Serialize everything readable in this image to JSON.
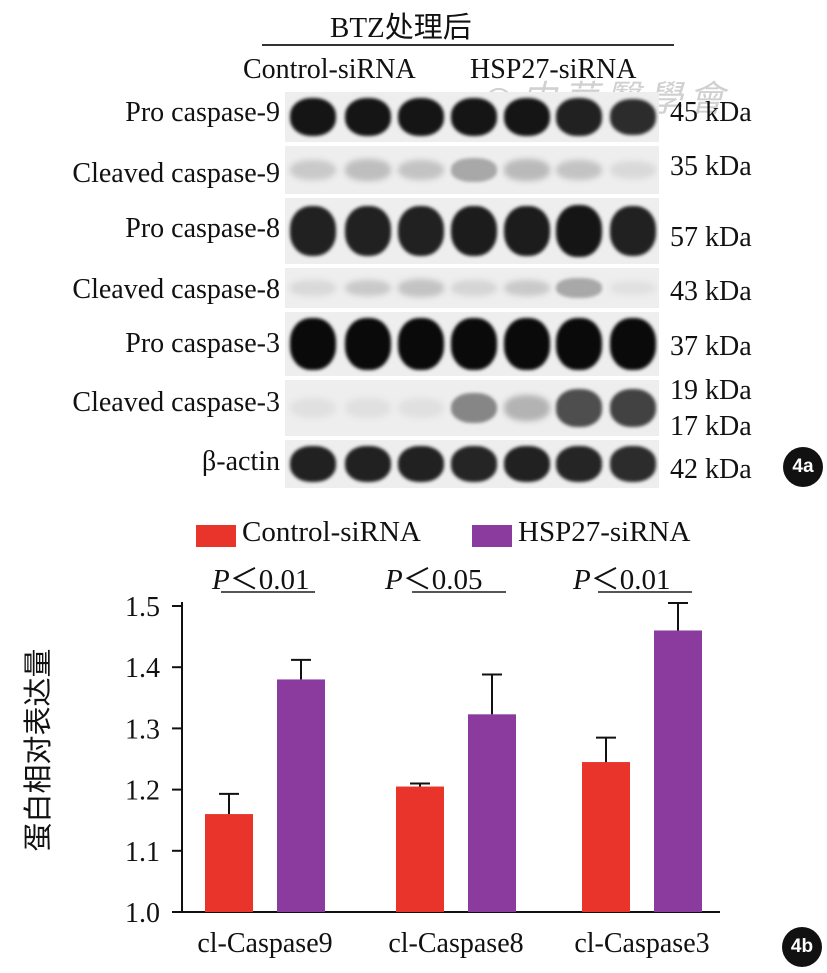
{
  "panel_a": {
    "header": "BTZ处理后",
    "groups": [
      "Control-siRNA",
      "HSP27-siRNA"
    ],
    "badge": "4a",
    "watermark": "中华医学会",
    "bands": [
      {
        "label": "Pro caspase-9",
        "mw": "45 kDa",
        "intensity": [
          0.95,
          0.95,
          0.95,
          0.95,
          0.95,
          0.9,
          0.85
        ]
      },
      {
        "label": "Cleaved caspase-9",
        "mw": "35 kDa",
        "intensity": [
          0.15,
          0.2,
          0.18,
          0.3,
          0.22,
          0.18,
          0.08
        ]
      },
      {
        "label": "Pro caspase-8",
        "mw": "57 kDa",
        "intensity": [
          0.9,
          0.9,
          0.9,
          0.92,
          0.92,
          0.95,
          0.9
        ]
      },
      {
        "label": "Cleaved caspase-8",
        "mw": "43 kDa",
        "intensity": [
          0.08,
          0.15,
          0.18,
          0.1,
          0.15,
          0.3,
          0.05
        ]
      },
      {
        "label": "Pro caspase-3",
        "mw": "37 kDa",
        "intensity": [
          1,
          1,
          1,
          1,
          1,
          1,
          1
        ]
      },
      {
        "label": "Cleaved caspase-3",
        "mw": "19 kDa",
        "mw2": "17 kDa",
        "intensity": [
          0.05,
          0.05,
          0.05,
          0.45,
          0.25,
          0.7,
          0.75
        ]
      },
      {
        "label": "β-actin",
        "mw": "42 kDa",
        "intensity": [
          0.9,
          0.9,
          0.9,
          0.88,
          0.9,
          0.88,
          0.85
        ]
      }
    ]
  },
  "panel_b": {
    "badge": "4b",
    "ylabel": "蛋白相对表达量",
    "pvalues": [
      {
        "p": "P",
        "rest": "＜0.01"
      },
      {
        "p": "P",
        "rest": "＜0.05"
      },
      {
        "p": "P",
        "rest": "＜0.01"
      }
    ]
  },
  "chart_data": {
    "type": "bar",
    "categories": [
      "cl-Caspase9",
      "cl-Caspase8",
      "cl-Caspase3"
    ],
    "series": [
      {
        "name": "Control-siRNA",
        "color": "#e8342a",
        "values": [
          1.16,
          1.205,
          1.245
        ],
        "errors": [
          0.033,
          0.005,
          0.04
        ]
      },
      {
        "name": "HSP27-siRNA",
        "color": "#8b3a9e",
        "values": [
          1.38,
          1.323,
          1.46
        ],
        "errors": [
          0.032,
          0.065,
          0.045
        ]
      }
    ],
    "ylabel": "蛋白相对表达量",
    "ylim": [
      1.0,
      1.5
    ],
    "yticks": [
      "1.0",
      "1.1",
      "1.2",
      "1.3",
      "1.4",
      "1.5"
    ],
    "legend": "top",
    "grid": false
  }
}
